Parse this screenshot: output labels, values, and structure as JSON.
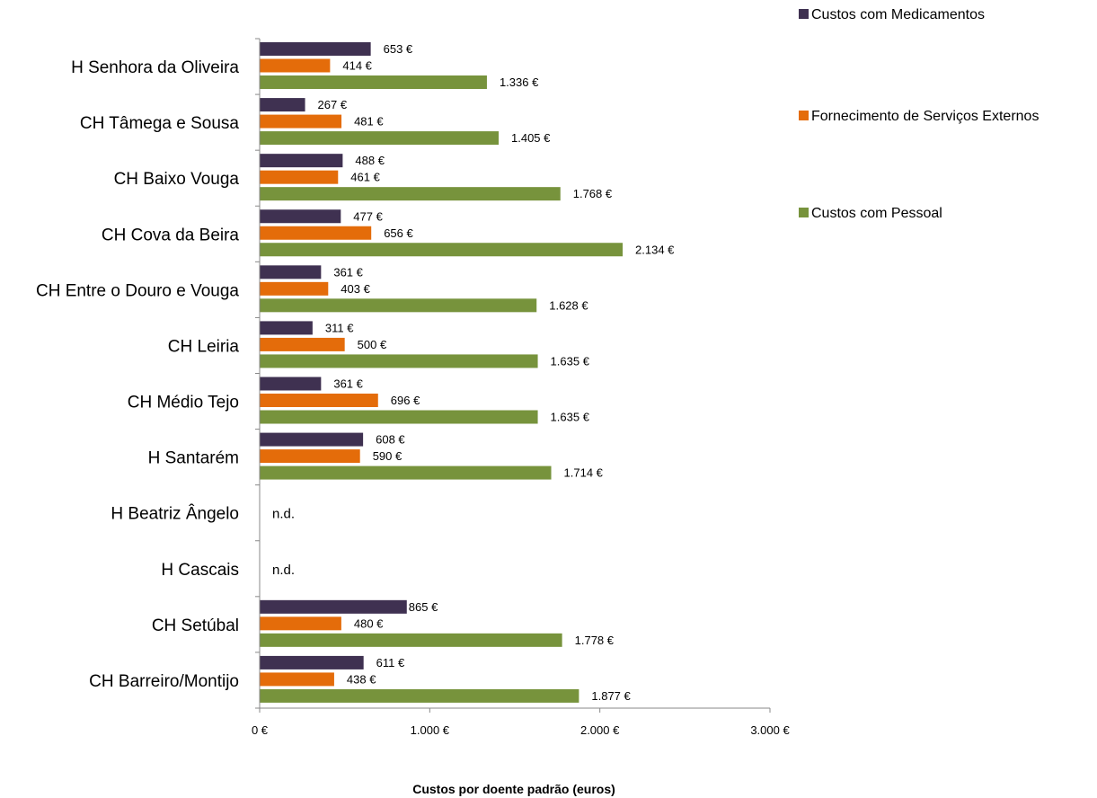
{
  "chart_data": {
    "type": "bar",
    "orientation": "horizontal",
    "categories": [
      "H Senhora da Oliveira",
      "CH Tâmega e Sousa",
      "CH Baixo Vouga",
      "CH Cova da Beira",
      "CH Entre o Douro e Vouga",
      "CH Leiria",
      "CH Médio Tejo",
      "H Santarém",
      "H Beatriz Ângelo",
      "H Cascais",
      "CH Setúbal",
      "CH Barreiro/Montijo"
    ],
    "series": [
      {
        "name": "Custos com Medicamentos",
        "color": "#3f3151",
        "values": [
          653,
          267,
          488,
          477,
          361,
          311,
          361,
          608,
          null,
          null,
          865,
          611
        ],
        "labels": [
          "653 €",
          "267 €",
          "488 €",
          "477 €",
          "361 €",
          "311 €",
          "361 €",
          "608 €",
          "",
          "",
          "865 €",
          "611 €"
        ]
      },
      {
        "name": "Fornecimento de Serviços Externos",
        "color": "#e46c0a",
        "values": [
          414,
          481,
          461,
          656,
          403,
          500,
          696,
          590,
          null,
          null,
          480,
          438
        ],
        "labels": [
          "414 €",
          "481 €",
          "461 €",
          "656 €",
          "403 €",
          "500 €",
          "696 €",
          "590 €",
          "",
          "",
          "480 €",
          "438 €"
        ]
      },
      {
        "name": "Custos com Pessoal",
        "color": "#77933c",
        "values": [
          1336,
          1405,
          1768,
          2134,
          1628,
          1635,
          1635,
          1714,
          null,
          null,
          1778,
          1877
        ],
        "labels": [
          "1.336 €",
          "1.405 €",
          "1.768 €",
          "2.134 €",
          "1.628 €",
          "1.635 €",
          "1.635 €",
          "1.714 €",
          "",
          "",
          "1.778 €",
          "1.877 €"
        ]
      }
    ],
    "missing_label": "n.d.",
    "xlabel": "Custos por doente padrão (euros)",
    "xlim": [
      0,
      3000
    ],
    "xticks": [
      0,
      1000,
      2000,
      3000
    ],
    "xtick_labels": [
      "0 €",
      "1.000 €",
      "2.000 €",
      "3.000 €"
    ],
    "grid": false,
    "legend_position": "top-right"
  }
}
